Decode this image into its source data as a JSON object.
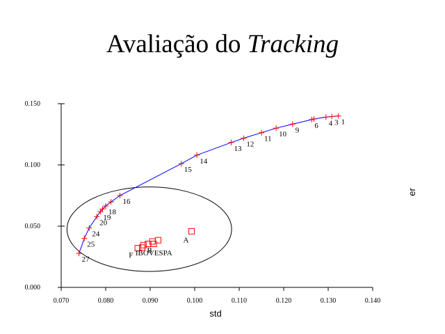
{
  "title": {
    "prefix": "Avaliação do",
    "emphasis": "Tracking"
  },
  "colors": {
    "frontier": "#0000ff",
    "markers": "#ff0000",
    "axes": "#000000",
    "ellipse": "#000000"
  },
  "chart_data": {
    "type": "scatter",
    "title": "Avaliação do Tracking",
    "xlabel": "std",
    "ylabel": "er",
    "xlim": [
      0.07,
      0.14
    ],
    "ylim": [
      0.0,
      0.15
    ],
    "xticks": [
      0.07,
      0.08,
      0.09,
      0.1,
      0.11,
      0.12,
      0.13,
      0.14
    ],
    "yticks": [
      0.0,
      0.05,
      0.1,
      0.15
    ],
    "xtick_labels": [
      "0.070",
      "0.080",
      "0.090",
      "0.100",
      "0.110",
      "0.120",
      "0.130",
      "0.140"
    ],
    "ytick_labels": [
      "0.000",
      "0.050",
      "0.100",
      "0.150"
    ],
    "grid": false,
    "series": [
      {
        "type": "line+marker",
        "marker": "plus",
        "points": [
          {
            "x": 0.1323,
            "y": 0.14,
            "label": "1"
          },
          {
            "x": 0.1308,
            "y": 0.1395,
            "label": "3"
          },
          {
            "x": 0.1295,
            "y": 0.139,
            "label": "4"
          },
          {
            "x": 0.1268,
            "y": 0.1375,
            "label": ""
          },
          {
            "x": 0.1263,
            "y": 0.137,
            "label": "6"
          },
          {
            "x": 0.122,
            "y": 0.1333,
            "label": "9"
          },
          {
            "x": 0.1183,
            "y": 0.13,
            "label": "10"
          },
          {
            "x": 0.115,
            "y": 0.1263,
            "label": "11"
          },
          {
            "x": 0.111,
            "y": 0.1218,
            "label": "12"
          },
          {
            "x": 0.1082,
            "y": 0.1183,
            "label": "13"
          },
          {
            "x": 0.1005,
            "y": 0.108,
            "label": "14"
          },
          {
            "x": 0.097,
            "y": 0.101,
            "label": "15"
          },
          {
            "x": 0.0832,
            "y": 0.075,
            "label": "16"
          },
          {
            "x": 0.0812,
            "y": 0.0698,
            "label": ""
          },
          {
            "x": 0.08,
            "y": 0.0665,
            "label": "18"
          },
          {
            "x": 0.0793,
            "y": 0.064,
            "label": ""
          },
          {
            "x": 0.0788,
            "y": 0.0618,
            "label": "19"
          },
          {
            "x": 0.078,
            "y": 0.0578,
            "label": "20"
          },
          {
            "x": 0.0763,
            "y": 0.0485,
            "label": "24"
          },
          {
            "x": 0.0752,
            "y": 0.04,
            "label": "25"
          },
          {
            "x": 0.074,
            "y": 0.0278,
            "label": "27"
          }
        ]
      },
      {
        "type": "scatter",
        "marker": "square",
        "points": [
          {
            "x": 0.0993,
            "y": 0.0458,
            "label": "A"
          },
          {
            "x": 0.0918,
            "y": 0.0385,
            "label": ""
          },
          {
            "x": 0.0905,
            "y": 0.0375,
            "label": ""
          },
          {
            "x": 0.0895,
            "y": 0.0355,
            "label": ""
          },
          {
            "x": 0.0885,
            "y": 0.0345,
            "label": ""
          },
          {
            "x": 0.0908,
            "y": 0.0355,
            "label": ""
          },
          {
            "x": 0.0882,
            "y": 0.0325,
            "label": ""
          },
          {
            "x": 0.0872,
            "y": 0.032,
            "label": ""
          }
        ],
        "annotations": [
          {
            "x": 0.0852,
            "y": 0.0245,
            "text": "F"
          },
          {
            "x": 0.0867,
            "y": 0.0262,
            "text": "IBOVESPA"
          },
          {
            "x": 0.0893,
            "y": 0.0285,
            "text": "B"
          }
        ]
      }
    ],
    "ellipse": {
      "cx": 0.0898,
      "cy": 0.0475,
      "rx": 0.0185,
      "ry": 0.0345
    }
  }
}
